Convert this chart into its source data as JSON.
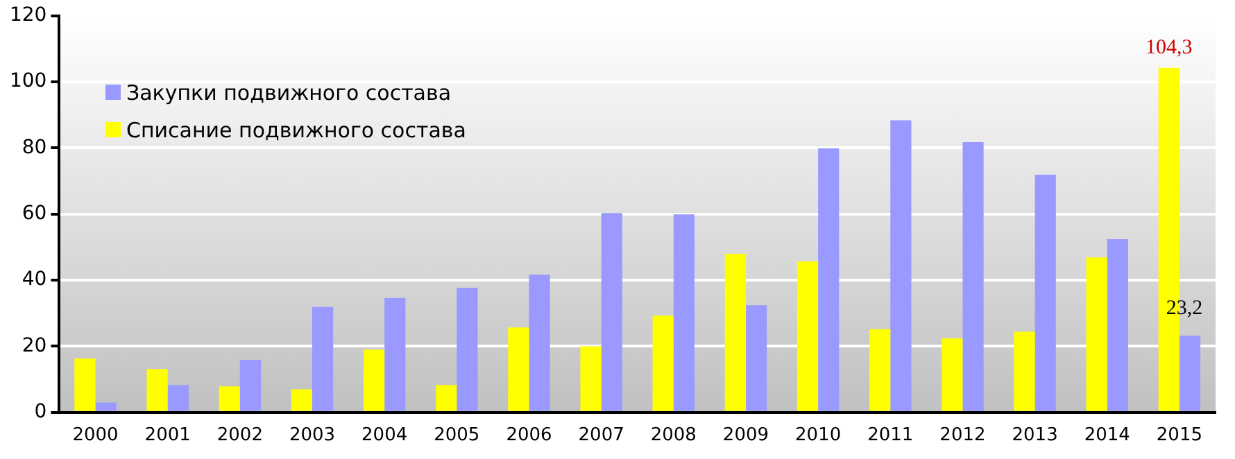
{
  "chart_data": {
    "type": "bar",
    "categories": [
      "2000",
      "2001",
      "2002",
      "2003",
      "2004",
      "2005",
      "2006",
      "2007",
      "2008",
      "2009",
      "2010",
      "2011",
      "2012",
      "2013",
      "2014",
      "2015"
    ],
    "series": [
      {
        "name": "Закупки подвижного состава",
        "color": "#9999ff",
        "values": [
          3.0,
          8.3,
          15.9,
          31.9,
          34.6,
          37.7,
          41.7,
          60.3,
          59.9,
          32.4,
          79.9,
          88.4,
          81.8,
          71.9,
          52.4,
          23.2
        ],
        "value_labels": [
          null,
          null,
          null,
          null,
          null,
          null,
          null,
          null,
          null,
          null,
          null,
          null,
          null,
          null,
          null,
          "23,2"
        ]
      },
      {
        "name": "Списание подвижного состава",
        "color": "#ffff00",
        "values": [
          16.3,
          13.1,
          7.9,
          7.0,
          19.0,
          8.3,
          25.7,
          20.0,
          29.3,
          48.0,
          45.7,
          25.2,
          22.4,
          24.4,
          46.9,
          104.3
        ],
        "value_labels": [
          null,
          null,
          null,
          null,
          null,
          null,
          null,
          null,
          null,
          null,
          null,
          null,
          null,
          null,
          null,
          "104,3"
        ]
      }
    ],
    "ylim": [
      0,
      120
    ],
    "yticks": [
      0,
      20,
      40,
      60,
      80,
      100,
      120
    ],
    "grid": "y",
    "legend": "top left"
  }
}
